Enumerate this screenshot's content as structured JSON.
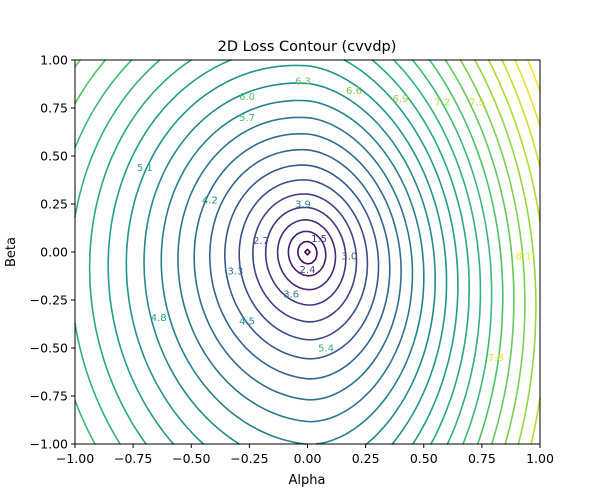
{
  "chart_data": {
    "type": "contour",
    "title": "2D Loss Contour (cvvdp)",
    "xlabel": "Alpha",
    "ylabel": "Beta",
    "xlim": [
      -1.0,
      1.0
    ],
    "ylim": [
      -1.0,
      1.0
    ],
    "x_ticks": [
      -1.0,
      -0.75,
      -0.5,
      -0.25,
      0.0,
      0.25,
      0.5,
      0.75,
      1.0
    ],
    "x_tick_labels": [
      "−1.00",
      "−0.75",
      "−0.50",
      "−0.25",
      "0.00",
      "0.25",
      "0.50",
      "0.75",
      "1.00"
    ],
    "y_ticks": [
      -1.0,
      -0.75,
      -0.5,
      -0.25,
      0.0,
      0.25,
      0.5,
      0.75,
      1.0
    ],
    "y_tick_labels": [
      "−1.00",
      "−0.75",
      "−0.50",
      "−0.25",
      "0.00",
      "0.25",
      "0.50",
      "0.75",
      "1.00"
    ],
    "minimum": {
      "alpha": 0.0,
      "beta": 0.0
    },
    "levels": [
      0.6,
      0.9,
      1.2,
      1.5,
      1.8,
      2.1,
      2.4,
      2.7,
      3.0,
      3.3,
      3.6,
      3.9,
      4.2,
      4.5,
      4.8,
      5.1,
      5.4,
      5.7,
      6.0,
      6.3,
      6.6,
      6.9,
      7.2,
      7.5,
      7.8,
      8.1
    ],
    "labeled_levels": [
      {
        "text": "6.3",
        "alpha": -0.02,
        "beta": 0.89
      },
      {
        "text": "6.6",
        "alpha": 0.2,
        "beta": 0.84
      },
      {
        "text": "6.9",
        "alpha": 0.4,
        "beta": 0.8
      },
      {
        "text": "7.2",
        "alpha": 0.58,
        "beta": 0.78
      },
      {
        "text": "7.5",
        "alpha": 0.73,
        "beta": 0.78
      },
      {
        "text": "6.0",
        "alpha": -0.26,
        "beta": 0.81
      },
      {
        "text": "5.7",
        "alpha": -0.26,
        "beta": 0.7
      },
      {
        "text": "5.1",
        "alpha": -0.7,
        "beta": 0.44
      },
      {
        "text": "4.2",
        "alpha": -0.42,
        "beta": 0.27
      },
      {
        "text": "3.9",
        "alpha": -0.02,
        "beta": 0.25
      },
      {
        "text": "2.7",
        "alpha": -0.2,
        "beta": 0.06
      },
      {
        "text": "1.5",
        "alpha": 0.05,
        "beta": 0.07
      },
      {
        "text": "2.4",
        "alpha": 0.0,
        "beta": -0.09
      },
      {
        "text": "3.0",
        "alpha": 0.18,
        "beta": -0.02
      },
      {
        "text": "3.3",
        "alpha": -0.31,
        "beta": -0.1
      },
      {
        "text": "3.6",
        "alpha": -0.07,
        "beta": -0.22
      },
      {
        "text": "4.5",
        "alpha": -0.26,
        "beta": -0.36
      },
      {
        "text": "4.8",
        "alpha": -0.64,
        "beta": -0.34
      },
      {
        "text": "5.4",
        "alpha": 0.08,
        "beta": -0.5
      },
      {
        "text": "7.8",
        "alpha": 0.81,
        "beta": -0.55
      },
      {
        "text": "8.1",
        "alpha": 0.93,
        "beta": -0.02
      }
    ],
    "colormap": "viridis",
    "grid": false,
    "legend": "none"
  }
}
